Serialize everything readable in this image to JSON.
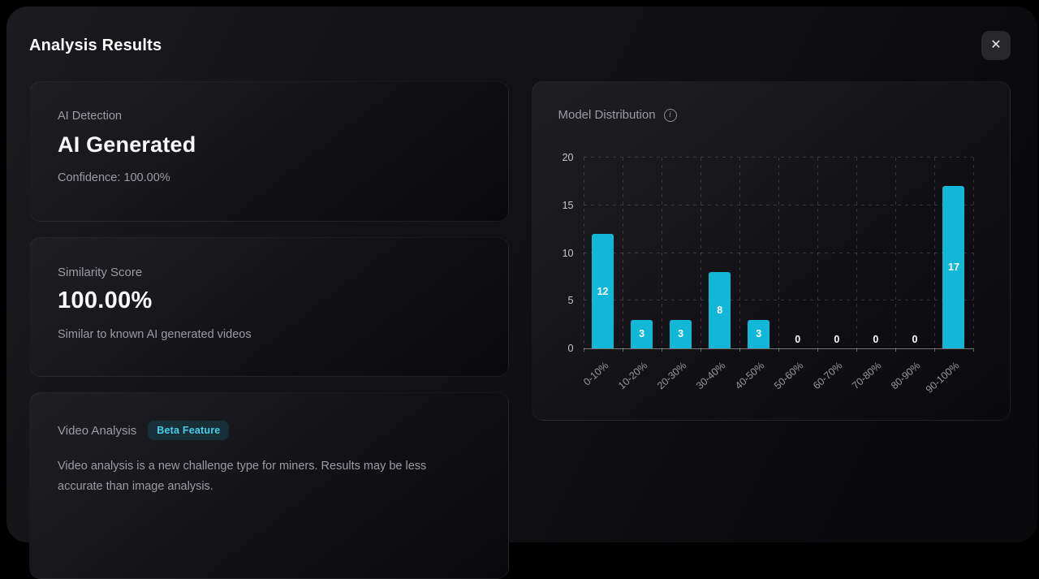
{
  "modal": {
    "title": "Analysis Results",
    "close_glyph": "✕"
  },
  "cards": {
    "ai_detection": {
      "label": "AI Detection",
      "result": "AI Generated",
      "confidence": "Confidence: 100.00%"
    },
    "similarity": {
      "label": "Similarity Score",
      "score": "100.00%",
      "description": "Similar to known AI generated videos"
    },
    "video_analysis": {
      "label": "Video Analysis",
      "badge": "Beta Feature",
      "description": "Video analysis is a new challenge type for miners. Results may be less accurate than image analysis."
    }
  },
  "chart": {
    "title": "Model Distribution",
    "info_glyph": "i"
  },
  "chart_data": {
    "type": "bar",
    "title": "Model Distribution",
    "categories": [
      "0-10%",
      "10-20%",
      "20-30%",
      "30-40%",
      "40-50%",
      "50-60%",
      "60-70%",
      "70-80%",
      "80-90%",
      "90-100%"
    ],
    "values": [
      12,
      3,
      3,
      8,
      3,
      0,
      0,
      0,
      0,
      17
    ],
    "xlabel": "",
    "ylabel": "",
    "ylim": [
      0,
      20
    ],
    "yticks": [
      0,
      5,
      10,
      15,
      20
    ],
    "grid": true,
    "legend": false,
    "bar_color": "#12b7d8",
    "value_label_color": "#ffffff"
  },
  "colors": {
    "accent": "#12b7d8",
    "badge_text": "#49cde9",
    "modal_bg": "#131316",
    "outside_bg": "#000000"
  }
}
